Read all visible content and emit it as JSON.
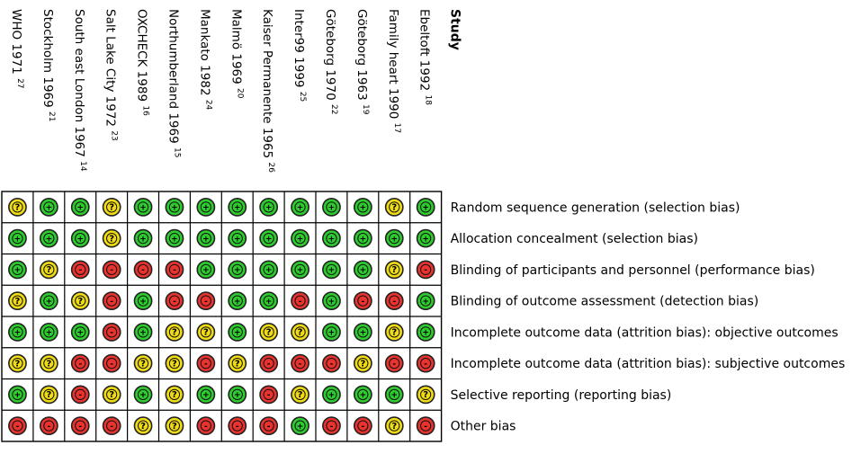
{
  "chart_data": {
    "type": "table",
    "title": "",
    "study_header": "Study",
    "studies": [
      {
        "name": "WHO 1971",
        "ref": "27"
      },
      {
        "name": "Stockholm 1969",
        "ref": "21"
      },
      {
        "name": "South east London 1967",
        "ref": "14"
      },
      {
        "name": "Salt Lake City 1972",
        "ref": "23"
      },
      {
        "name": "OXCHECK 1989",
        "ref": "16"
      },
      {
        "name": "Northumberland 1969",
        "ref": "15"
      },
      {
        "name": "Mankato 1982",
        "ref": "24"
      },
      {
        "name": "Malmö 1969",
        "ref": "20"
      },
      {
        "name": "Kaiser Permanente 1965",
        "ref": "26"
      },
      {
        "name": "Inter99 1999",
        "ref": "25"
      },
      {
        "name": "Göteborg 1970",
        "ref": "22"
      },
      {
        "name": "Göteborg 1963",
        "ref": "19"
      },
      {
        "name": "Family heart 1990",
        "ref": "17"
      },
      {
        "name": "Ebeltoft 1992",
        "ref": "18"
      }
    ],
    "domains": [
      "Random sequence generation (selection bias)",
      "Allocation concealment (selection bias)",
      "Blinding of participants and personnel (performance bias)",
      "Blinding of outcome assessment (detection bias)",
      "Incomplete outcome data (attrition bias): objective outcomes",
      "Incomplete outcome data (attrition bias): subjective outcomes",
      "Selective reporting (reporting bias)",
      "Other bias"
    ],
    "judgements": [
      [
        "?",
        "+",
        "+",
        "?",
        "+",
        "+",
        "+",
        "+",
        "+",
        "+",
        "+",
        "+",
        "?",
        "+"
      ],
      [
        "+",
        "+",
        "+",
        "?",
        "+",
        "+",
        "+",
        "+",
        "+",
        "+",
        "+",
        "+",
        "+",
        "+"
      ],
      [
        "+",
        "?",
        "-",
        "-",
        "-",
        "-",
        "+",
        "+",
        "+",
        "+",
        "+",
        "+",
        "?",
        "-"
      ],
      [
        "?",
        "+",
        "?",
        "-",
        "+",
        "-",
        "-",
        "+",
        "+",
        "-",
        "+",
        "-",
        "-",
        "+"
      ],
      [
        "+",
        "+",
        "+",
        "-",
        "+",
        "?",
        "?",
        "+",
        "?",
        "?",
        "+",
        "+",
        "?",
        "+"
      ],
      [
        "?",
        "?",
        "-",
        "-",
        "?",
        "?",
        "-",
        "?",
        "-",
        "-",
        "-",
        "?",
        "-",
        "-"
      ],
      [
        "+",
        "?",
        "-",
        "?",
        "+",
        "?",
        "+",
        "+",
        "-",
        "?",
        "+",
        "+",
        "+",
        "?"
      ],
      [
        "-",
        "-",
        "-",
        "-",
        "?",
        "?",
        "-",
        "-",
        "-",
        "+",
        "-",
        "-",
        "?",
        "-"
      ]
    ],
    "legend": {
      "low": "+",
      "unclear": "?",
      "high": "-"
    },
    "colors": {
      "low": "#2ecc2e",
      "unclear": "#f0dc14",
      "high": "#e8332e",
      "grid": "#000000"
    }
  }
}
